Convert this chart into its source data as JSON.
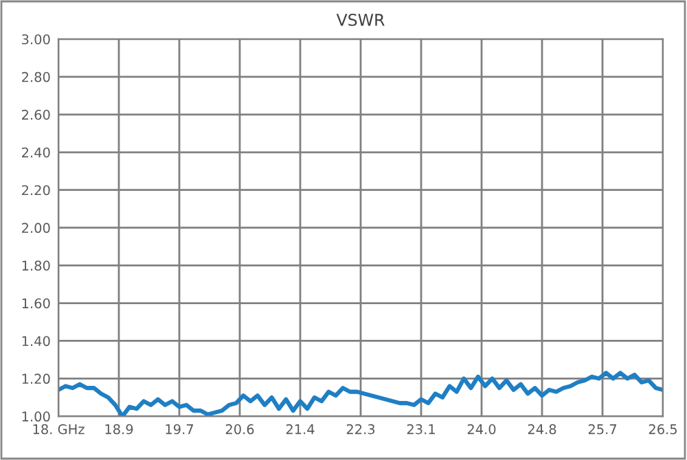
{
  "chart_data": {
    "type": "line",
    "title": "VSWR",
    "x": [
      18.0,
      18.1,
      18.2,
      18.3,
      18.4,
      18.5,
      18.6,
      18.7,
      18.8,
      18.9,
      19.0,
      19.1,
      19.2,
      19.3,
      19.4,
      19.5,
      19.6,
      19.7,
      19.8,
      19.9,
      20.0,
      20.1,
      20.2,
      20.3,
      20.4,
      20.5,
      20.6,
      20.7,
      20.8,
      20.9,
      21.0,
      21.1,
      21.2,
      21.3,
      21.4,
      21.5,
      21.6,
      21.7,
      21.8,
      21.9,
      22.0,
      22.1,
      22.2,
      22.3,
      22.4,
      22.5,
      22.6,
      22.7,
      22.8,
      22.9,
      23.0,
      23.1,
      23.2,
      23.3,
      23.4,
      23.5,
      23.6,
      23.7,
      23.8,
      23.9,
      24.0,
      24.1,
      24.2,
      24.3,
      24.4,
      24.5,
      24.6,
      24.7,
      24.8,
      24.9,
      25.0,
      25.1,
      25.2,
      25.3,
      25.4,
      25.5,
      25.6,
      25.7,
      25.8,
      25.9,
      26.0,
      26.1,
      26.2,
      26.3,
      26.4,
      26.5
    ],
    "series": [
      {
        "color": "#1f7fc4",
        "values": [
          1.14,
          1.16,
          1.15,
          1.17,
          1.15,
          1.15,
          1.12,
          1.1,
          1.06,
          1.0,
          1.05,
          1.04,
          1.08,
          1.06,
          1.09,
          1.06,
          1.08,
          1.05,
          1.06,
          1.03,
          1.03,
          1.01,
          1.02,
          1.03,
          1.06,
          1.07,
          1.11,
          1.08,
          1.11,
          1.06,
          1.1,
          1.04,
          1.09,
          1.03,
          1.08,
          1.04,
          1.1,
          1.08,
          1.13,
          1.11,
          1.15,
          1.13,
          1.13,
          1.12,
          1.11,
          1.1,
          1.09,
          1.08,
          1.07,
          1.07,
          1.06,
          1.09,
          1.07,
          1.12,
          1.1,
          1.16,
          1.13,
          1.2,
          1.15,
          1.21,
          1.16,
          1.2,
          1.15,
          1.19,
          1.14,
          1.17,
          1.12,
          1.15,
          1.11,
          1.14,
          1.13,
          1.15,
          1.16,
          1.18,
          1.19,
          1.21,
          1.2,
          1.23,
          1.2,
          1.23,
          1.2,
          1.22,
          1.18,
          1.19,
          1.15,
          1.14
        ]
      }
    ],
    "xlim": [
      18.0,
      26.5
    ],
    "xticks": [
      {
        "value": 18.0,
        "label": "18. GHz"
      },
      {
        "value": 18.85,
        "label": "18.9"
      },
      {
        "value": 19.7,
        "label": "19.7"
      },
      {
        "value": 20.55,
        "label": "20.6"
      },
      {
        "value": 21.4,
        "label": "21.4"
      },
      {
        "value": 22.25,
        "label": "22.3"
      },
      {
        "value": 23.1,
        "label": "23.1"
      },
      {
        "value": 23.95,
        "label": "24.0"
      },
      {
        "value": 24.8,
        "label": "24.8"
      },
      {
        "value": 25.65,
        "label": "25.7"
      },
      {
        "value": 26.5,
        "label": "26.5"
      }
    ],
    "ylim": [
      1.0,
      3.0
    ],
    "yticks": [
      {
        "value": 1.0,
        "label": "1.00"
      },
      {
        "value": 1.2,
        "label": "1.20"
      },
      {
        "value": 1.4,
        "label": "1.40"
      },
      {
        "value": 1.6,
        "label": "1.60"
      },
      {
        "value": 1.8,
        "label": "1.80"
      },
      {
        "value": 2.0,
        "label": "2.00"
      },
      {
        "value": 2.2,
        "label": "2.20"
      },
      {
        "value": 2.4,
        "label": "2.40"
      },
      {
        "value": 2.6,
        "label": "2.60"
      },
      {
        "value": 2.8,
        "label": "2.80"
      },
      {
        "value": 3.0,
        "label": "3.00"
      }
    ],
    "grid": true
  }
}
